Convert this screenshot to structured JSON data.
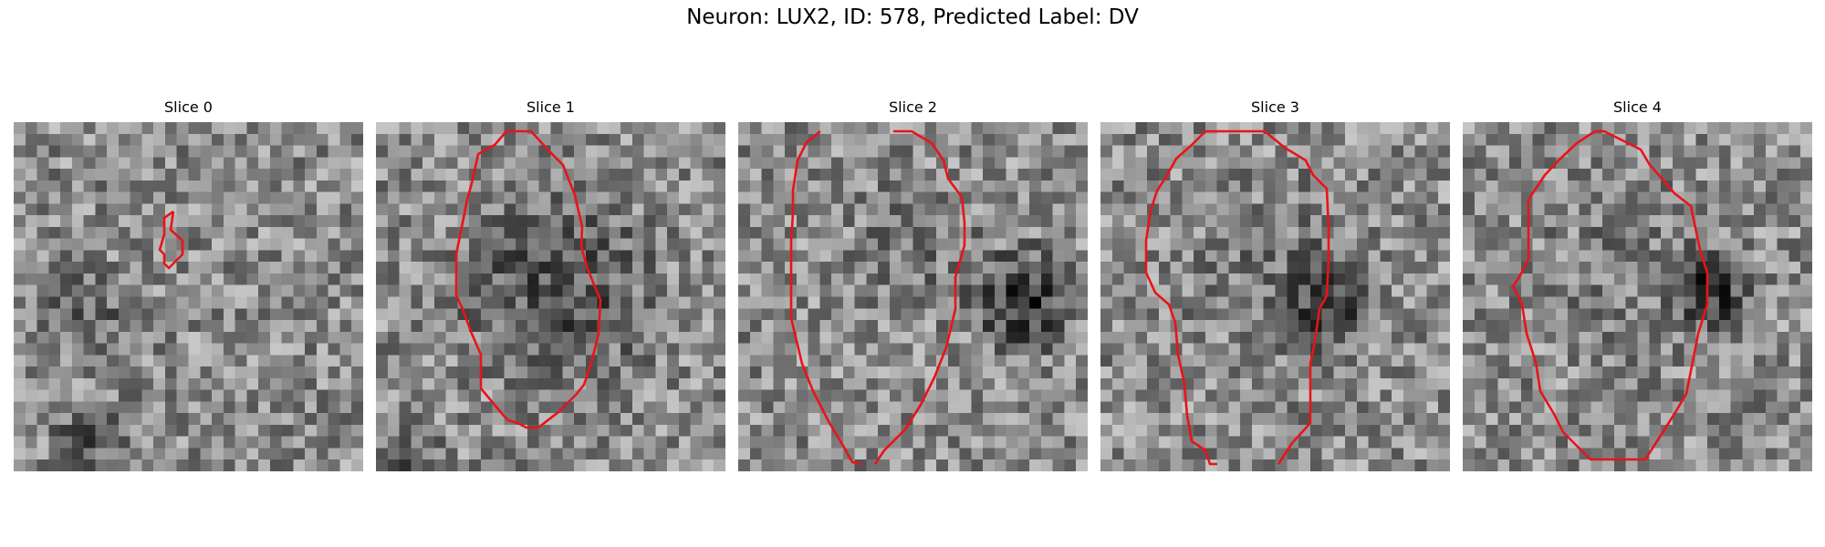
{
  "figure": {
    "title": "Neuron: LUX2, ID: 578, Predicted Label: DV"
  },
  "contour_color": "#e8141a",
  "slices": [
    {
      "title": "Slice 0"
    },
    {
      "title": "Slice 1"
    },
    {
      "title": "Slice 2"
    },
    {
      "title": "Slice 3"
    },
    {
      "title": "Slice 4"
    }
  ]
}
